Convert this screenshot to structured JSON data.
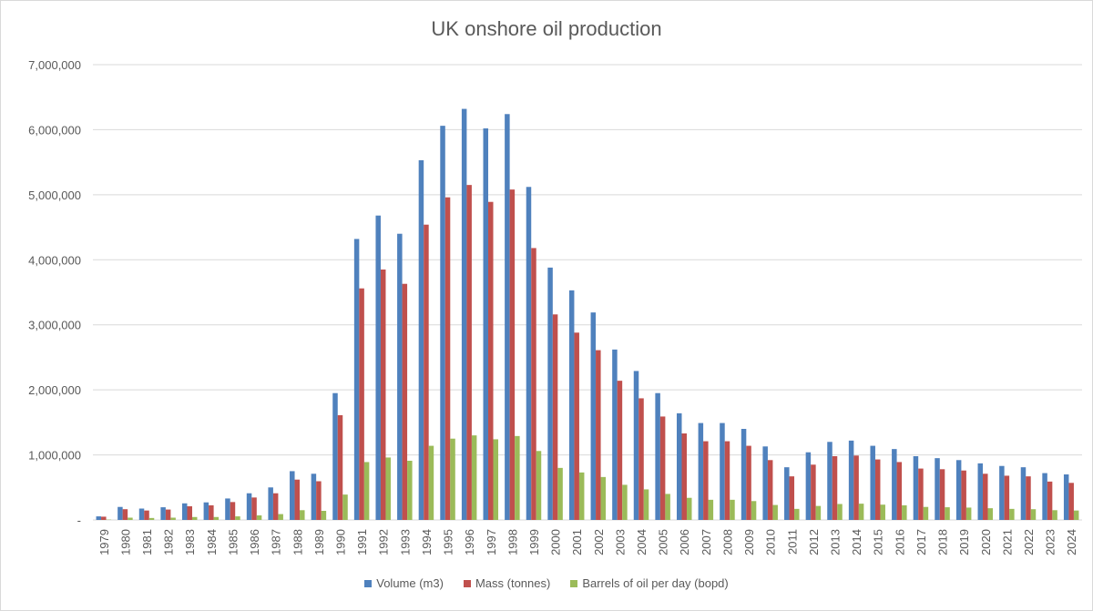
{
  "chart_data": {
    "type": "bar",
    "title": "UK onshore oil production",
    "xlabel": "",
    "ylabel": "",
    "ylim": [
      0,
      7000000
    ],
    "yticks": [
      "-",
      "1,000,000",
      "2,000,000",
      "3,000,000",
      "4,000,000",
      "5,000,000",
      "6,000,000",
      "7,000,000"
    ],
    "grid": true,
    "legend_position": "bottom",
    "categories": [
      "1979",
      "1980",
      "1981",
      "1982",
      "1983",
      "1984",
      "1985",
      "1986",
      "1987",
      "1988",
      "1989",
      "1990",
      "1991",
      "1992",
      "1993",
      "1994",
      "1995",
      "1996",
      "1997",
      "1998",
      "1999",
      "2000",
      "2001",
      "2002",
      "2003",
      "2004",
      "2005",
      "2006",
      "2007",
      "2008",
      "2009",
      "2010",
      "2011",
      "2012",
      "2013",
      "2014",
      "2015",
      "2016",
      "2017",
      "2018",
      "2019",
      "2020",
      "2021",
      "2022",
      "2023",
      "2024"
    ],
    "series": [
      {
        "name": "Volume (m3)",
        "color": "#4f81bd",
        "values": [
          55000,
          200000,
          175000,
          195000,
          255000,
          270000,
          330000,
          410000,
          500000,
          750000,
          710000,
          1950000,
          4320000,
          4680000,
          4400000,
          5530000,
          6060000,
          6320000,
          6020000,
          6240000,
          5120000,
          3880000,
          3530000,
          3190000,
          2620000,
          2290000,
          1950000,
          1640000,
          1490000,
          1490000,
          1400000,
          1130000,
          810000,
          1040000,
          1200000,
          1220000,
          1140000,
          1090000,
          980000,
          950000,
          920000,
          870000,
          830000,
          810000,
          720000,
          700000
        ]
      },
      {
        "name": "Mass (tonnes)",
        "color": "#c0504d",
        "values": [
          50000,
          165000,
          145000,
          160000,
          210000,
          225000,
          275000,
          345000,
          410000,
          620000,
          595000,
          1610000,
          3560000,
          3850000,
          3630000,
          4540000,
          4960000,
          5150000,
          4890000,
          5080000,
          4180000,
          3160000,
          2880000,
          2610000,
          2140000,
          1870000,
          1590000,
          1330000,
          1210000,
          1210000,
          1140000,
          920000,
          670000,
          850000,
          980000,
          990000,
          930000,
          890000,
          790000,
          780000,
          760000,
          710000,
          680000,
          670000,
          590000,
          570000
        ]
      },
      {
        "name": "Barrels of oil per day (bopd)",
        "color": "#9bbb59",
        "values": [
          5000,
          35000,
          30000,
          35000,
          45000,
          45000,
          55000,
          70000,
          90000,
          150000,
          140000,
          390000,
          890000,
          960000,
          910000,
          1140000,
          1250000,
          1300000,
          1240000,
          1290000,
          1060000,
          800000,
          730000,
          660000,
          540000,
          470000,
          400000,
          340000,
          310000,
          310000,
          290000,
          230000,
          170000,
          215000,
          245000,
          250000,
          235000,
          225000,
          200000,
          195000,
          190000,
          180000,
          170000,
          165000,
          150000,
          145000
        ]
      }
    ]
  }
}
